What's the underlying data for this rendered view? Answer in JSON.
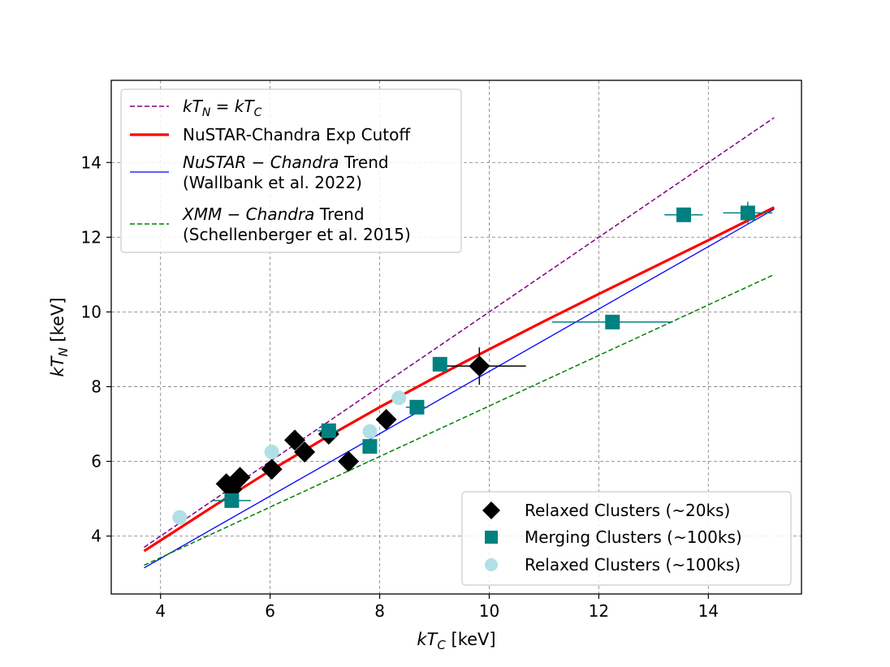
{
  "chart_data": {
    "type": "scatter",
    "xlabel": "kT_C [keV]",
    "ylabel": "kT_N [keV]",
    "xlim": [
      3.1,
      15.7
    ],
    "ylim": [
      2.45,
      16.2
    ],
    "xticks": [
      4,
      6,
      8,
      10,
      12,
      14
    ],
    "yticks": [
      4,
      6,
      8,
      10,
      12,
      14
    ],
    "grid": true,
    "lines": [
      {
        "name": "kT_N = kT_C",
        "label_html": "<tspan font-style='italic'>kT</tspan><tspan font-style='italic' font-size='14' dy='5'>N</tspan><tspan dy='-5'> = </tspan><tspan font-style='italic'>kT</tspan><tspan font-style='italic' font-size='14' dy='5'>C</tspan>",
        "style": "dashed",
        "color": "#800080",
        "x": [
          3.7,
          15.2
        ],
        "y": [
          3.7,
          15.2
        ]
      },
      {
        "name": "NuSTAR-Chandra Exp Cutoff",
        "style": "solid-thick",
        "color": "#ff0000",
        "x": [
          3.7,
          5,
          6,
          7,
          8,
          9,
          10,
          11,
          12,
          13,
          14,
          15.2
        ],
        "y": [
          3.6,
          4.83,
          5.75,
          6.62,
          7.45,
          8.24,
          9.0,
          9.75,
          10.48,
          11.2,
          11.92,
          12.8
        ]
      },
      {
        "name": "NuSTAR − Chandra Trend (Wallbank et al. 2022)",
        "line1_html": "<tspan font-style='italic'>NuSTAR − Chandra</tspan><tspan> Trend</tspan>",
        "line2": "(Wallbank et al. 2022)",
        "style": "solid-thin",
        "color": "#0000ff",
        "x": [
          3.7,
          15.2
        ],
        "y": [
          3.15,
          12.75
        ]
      },
      {
        "name": "XMM − Chandra Trend (Schellenberger et al. 2015)",
        "line1_html": "<tspan font-style='italic'>XMM − Chandra</tspan><tspan> Trend</tspan>",
        "line2": "(Schellenberger et al. 2015)",
        "style": "dashed",
        "color": "#008000",
        "x": [
          3.7,
          15.2
        ],
        "y": [
          3.22,
          11.0
        ]
      }
    ],
    "series": [
      {
        "name": "Relaxed Clusters (~20ks)",
        "marker": "diamond",
        "color": "#000000",
        "points": [
          {
            "x": 5.2,
            "y": 5.4
          },
          {
            "x": 5.3,
            "y": 5.25
          },
          {
            "x": 5.45,
            "y": 5.57
          },
          {
            "x": 6.03,
            "y": 5.79
          },
          {
            "x": 6.45,
            "y": 6.57
          },
          {
            "x": 6.63,
            "y": 6.25
          },
          {
            "x": 7.07,
            "y": 6.73
          },
          {
            "x": 7.43,
            "y": 6.0
          },
          {
            "x": 8.12,
            "y": 7.12
          },
          {
            "x": 9.82,
            "y": 8.55,
            "xerr": 0.85,
            "yerr": 0.5
          }
        ]
      },
      {
        "name": "Merging Clusters (~100ks)",
        "marker": "square",
        "color": "#008080",
        "points": [
          {
            "x": 5.3,
            "y": 4.95,
            "xerr": 0.35,
            "yerr": 0.1
          },
          {
            "x": 7.07,
            "y": 6.82,
            "xerr": 0.2,
            "yerr": 0.1
          },
          {
            "x": 7.82,
            "y": 6.4,
            "xerr": 0.1,
            "yerr": 0.1
          },
          {
            "x": 8.68,
            "y": 7.45,
            "xerr": 0.2,
            "yerr": 0.1
          },
          {
            "x": 9.1,
            "y": 8.6,
            "xerr": 0.1,
            "yerr": 0.05
          },
          {
            "x": 12.25,
            "y": 9.73,
            "xerr": 1.1,
            "yerr": 0.05
          },
          {
            "x": 13.55,
            "y": 12.6,
            "xerr": 0.35,
            "yerr": 0.05
          },
          {
            "x": 14.72,
            "y": 12.65,
            "xerr": 0.45,
            "yerr": 0.3
          }
        ]
      },
      {
        "name": "Relaxed Clusters (~100ks)",
        "marker": "circle",
        "color": "#b0e0e6",
        "points": [
          {
            "x": 4.35,
            "y": 4.5
          },
          {
            "x": 6.03,
            "y": 6.25
          },
          {
            "x": 7.82,
            "y": 6.8
          },
          {
            "x": 8.35,
            "y": 7.7
          }
        ]
      }
    ],
    "legend_upper_left": "top-left",
    "legend_lower_right": "bottom-right"
  }
}
